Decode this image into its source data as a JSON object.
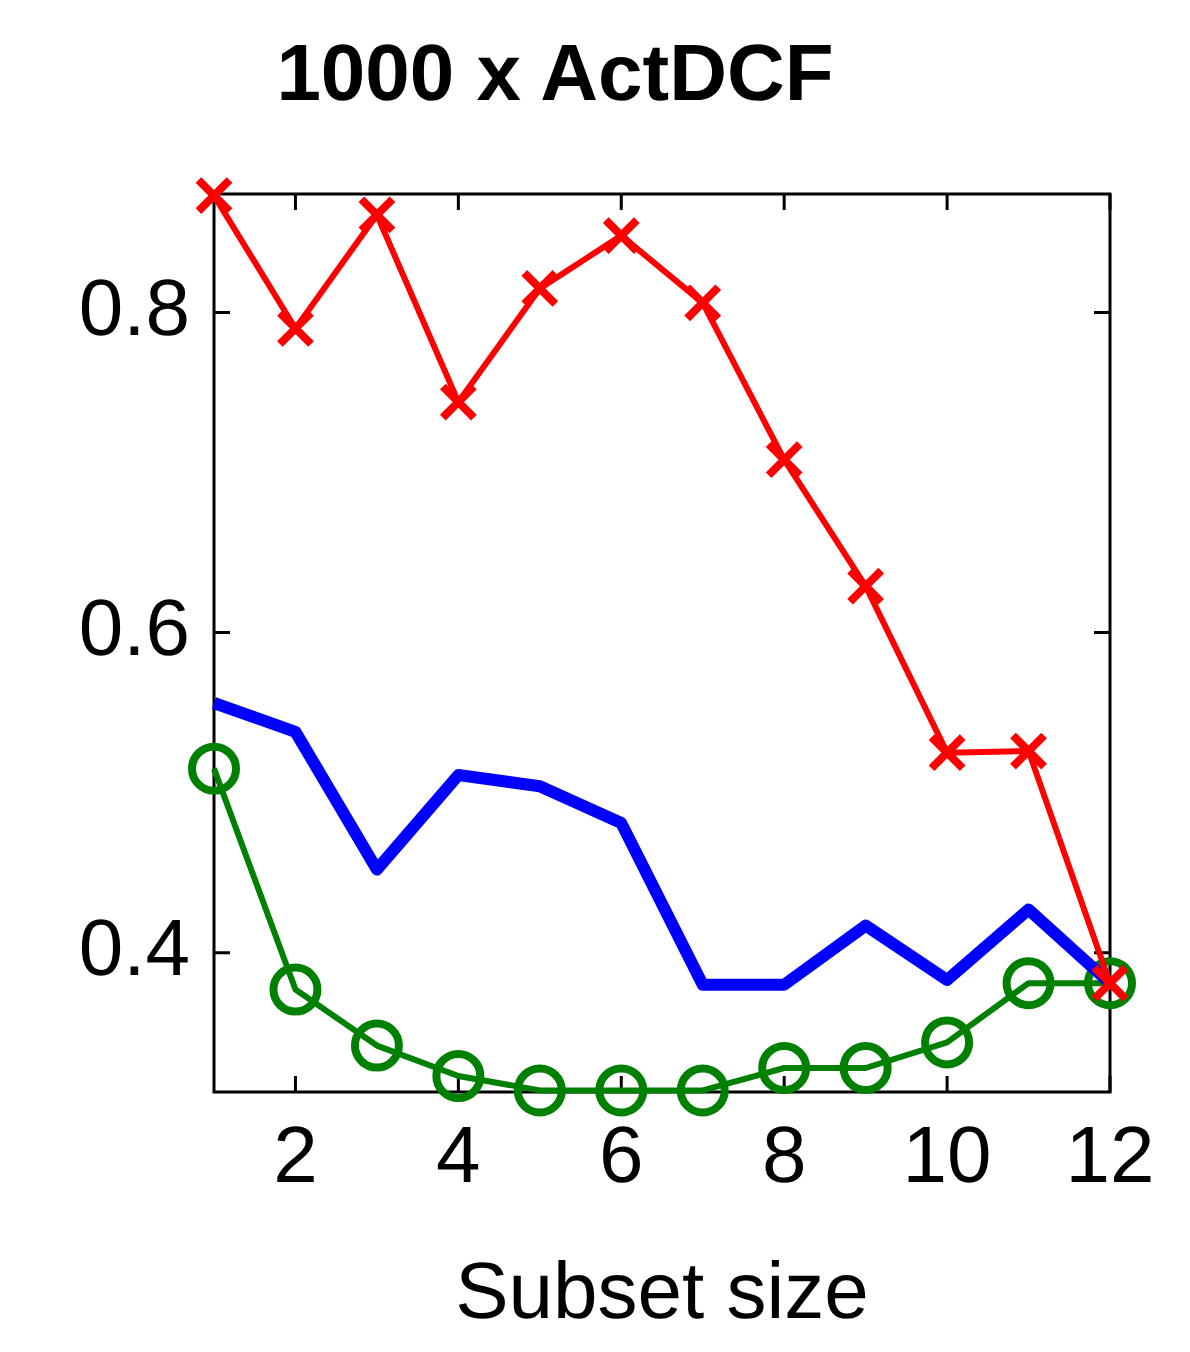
{
  "chart_data": {
    "type": "line",
    "title": "1000 x ActDCF",
    "xlabel": "Subset size",
    "x": [
      1,
      2,
      3,
      4,
      5,
      6,
      7,
      8,
      9,
      10,
      11,
      12
    ],
    "xlim": [
      1,
      12
    ],
    "xticks": [
      2,
      4,
      6,
      8,
      10,
      12
    ],
    "ylim": [
      0.313,
      0.874
    ],
    "yticks": [
      0.4,
      0.6,
      0.8
    ],
    "grid": false,
    "legend": false,
    "series": [
      {
        "color": "#ff0000",
        "marker": "cross",
        "values": [
          0.873,
          0.79,
          0.861,
          0.744,
          0.815,
          0.848,
          0.806,
          0.708,
          0.629,
          0.525,
          0.526,
          0.381
        ]
      },
      {
        "color": "#0000ff",
        "marker": "none",
        "values": [
          0.556,
          0.538,
          0.452,
          0.511,
          0.504,
          0.481,
          0.38,
          0.38,
          0.417,
          0.383,
          0.427,
          0.381
        ]
      },
      {
        "color": "#008000",
        "marker": "circle",
        "values": [
          0.515,
          0.377,
          0.342,
          0.323,
          0.314,
          0.314,
          0.314,
          0.328,
          0.328,
          0.344,
          0.381,
          0.381
        ]
      }
    ]
  }
}
